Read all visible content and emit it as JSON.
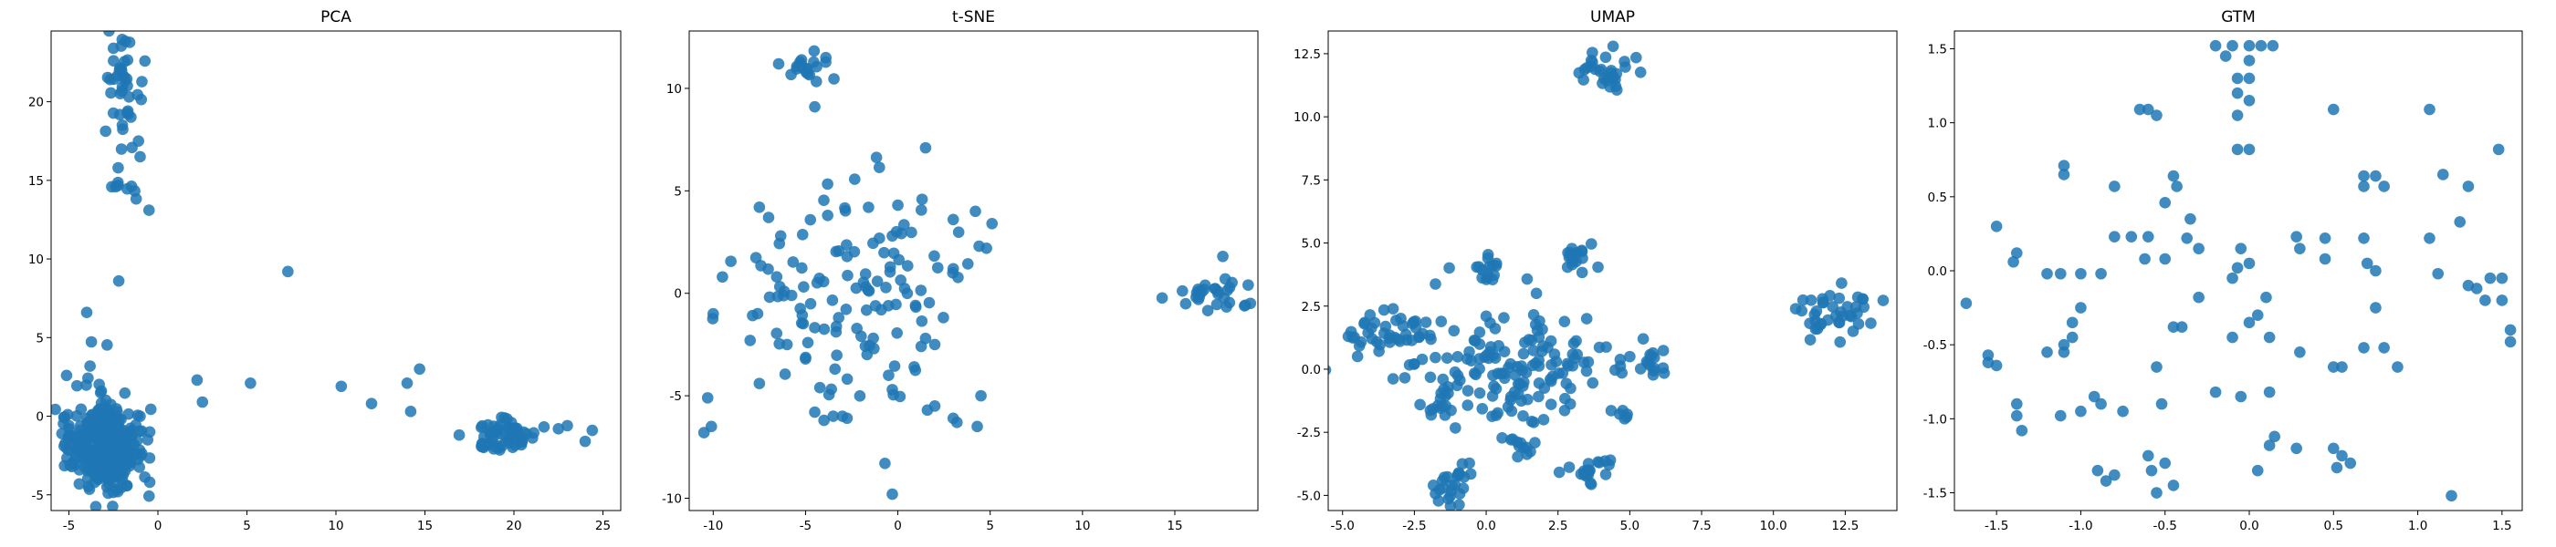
{
  "figure": {
    "background": "#ffffff",
    "marker_color": "#1f77b4",
    "marker_alpha": 0.85
  },
  "chart_data": [
    {
      "type": "scatter",
      "title": "PCA",
      "xlabel": "",
      "ylabel": "",
      "xlim": [
        -6.0,
        26.0
      ],
      "ylim": [
        -6.0,
        24.5
      ],
      "xticks": [
        -5,
        0,
        5,
        10,
        15,
        20,
        25
      ],
      "yticks": [
        -5,
        0,
        5,
        10,
        15,
        20
      ],
      "grid": false,
      "clusters": [
        {
          "cx": -3.0,
          "cy": -2.0,
          "sx": 1.0,
          "sy": 1.3,
          "n": 380
        },
        {
          "cx": -3.8,
          "cy": 2.5,
          "sx": 0.5,
          "sy": 1.6,
          "n": 10
        },
        {
          "cx": -2.0,
          "cy": 20.5,
          "sx": 0.5,
          "sy": 2.0,
          "n": 45
        },
        {
          "cx": -2.0,
          "cy": 14.3,
          "sx": 0.4,
          "sy": 0.4,
          "n": 8
        },
        {
          "cx": 19.5,
          "cy": -1.2,
          "sx": 1.0,
          "sy": 0.5,
          "n": 60
        }
      ],
      "points": [
        [
          -1.0,
          16.5
        ],
        [
          -0.5,
          13.1
        ],
        [
          -2.2,
          8.6
        ],
        [
          7.3,
          9.2
        ],
        [
          2.2,
          2.3
        ],
        [
          2.5,
          0.9
        ],
        [
          5.2,
          2.1
        ],
        [
          10.3,
          1.9
        ],
        [
          12.0,
          0.8
        ],
        [
          14.0,
          2.1
        ],
        [
          14.7,
          3.0
        ],
        [
          14.2,
          0.3
        ],
        [
          22.5,
          -0.8
        ],
        [
          24.0,
          -1.6
        ],
        [
          24.4,
          -0.9
        ],
        [
          23.0,
          -0.6
        ],
        [
          -5.0,
          -0.6
        ],
        [
          -4.0,
          6.6
        ],
        [
          -2.5,
          23.4
        ]
      ]
    },
    {
      "type": "scatter",
      "title": "t-SNE",
      "xlabel": "",
      "ylabel": "",
      "xlim": [
        -11.3,
        19.5
      ],
      "ylim": [
        -10.6,
        12.8
      ],
      "xticks": [
        -10,
        -5,
        0,
        5,
        10,
        15
      ],
      "yticks": [
        -10,
        -5,
        0,
        5,
        10
      ],
      "grid": false,
      "clusters": [
        {
          "cx": -5.0,
          "cy": 11.3,
          "sx": 0.6,
          "sy": 0.4,
          "n": 20
        },
        {
          "cx": 17.0,
          "cy": 0.0,
          "sx": 1.0,
          "sy": 0.5,
          "n": 30
        },
        {
          "cx": -2.5,
          "cy": 0.0,
          "sx": 3.0,
          "sy": 2.5,
          "n": 120
        }
      ],
      "points": [
        [
          -3.9,
          11.5
        ],
        [
          -4.5,
          9.1
        ],
        [
          1.5,
          7.1
        ],
        [
          4.2,
          4.0
        ],
        [
          5.1,
          3.4
        ],
        [
          4.4,
          2.3
        ],
        [
          4.8,
          2.2
        ],
        [
          3.0,
          3.6
        ],
        [
          3.0,
          1.2
        ],
        [
          -7.5,
          4.2
        ],
        [
          -7.0,
          3.7
        ],
        [
          -3.8,
          3.8
        ],
        [
          0.0,
          4.3
        ],
        [
          -0.3,
          2.8
        ],
        [
          -10.0,
          -1.0
        ],
        [
          -9.5,
          0.8
        ],
        [
          -10.3,
          -5.1
        ],
        [
          -10.1,
          -6.5
        ],
        [
          -10.5,
          -6.8
        ],
        [
          -8.0,
          -2.3
        ],
        [
          -7.5,
          -4.4
        ],
        [
          -6.0,
          -2.5
        ],
        [
          -5.0,
          -3.2
        ],
        [
          -4.5,
          -5.8
        ],
        [
          -4.0,
          -6.2
        ],
        [
          -3.5,
          -6.0
        ],
        [
          -3.0,
          -6.0
        ],
        [
          -0.5,
          -4.0
        ],
        [
          -0.3,
          -4.7
        ],
        [
          -0.7,
          -8.3
        ],
        [
          -0.3,
          -9.8
        ],
        [
          1.5,
          -2.2
        ],
        [
          2.0,
          -2.5
        ],
        [
          1.6,
          -5.7
        ],
        [
          2.0,
          -5.5
        ],
        [
          3.0,
          -6.1
        ],
        [
          3.2,
          -6.3
        ],
        [
          4.5,
          -5.0
        ],
        [
          4.3,
          -6.5
        ],
        [
          17.6,
          1.8
        ]
      ]
    },
    {
      "type": "scatter",
      "title": "UMAP",
      "xlabel": "",
      "ylabel": "",
      "xlim": [
        -5.5,
        14.3
      ],
      "ylim": [
        -5.6,
        13.4
      ],
      "xticks": [
        -5.0,
        -2.5,
        0.0,
        2.5,
        5.0,
        7.5,
        10.0,
        12.5
      ],
      "yticks": [
        -5.0,
        -2.5,
        0.0,
        2.5,
        5.0,
        7.5,
        10.0,
        12.5
      ],
      "grid": false,
      "clusters": [
        {
          "cx": 4.2,
          "cy": 11.9,
          "sx": 0.6,
          "sy": 0.4,
          "n": 30
        },
        {
          "cx": 12.2,
          "cy": 2.2,
          "sx": 1.0,
          "sy": 0.5,
          "n": 40
        },
        {
          "cx": 0.0,
          "cy": 4.0,
          "sx": 0.3,
          "sy": 0.3,
          "n": 15
        },
        {
          "cx": 3.1,
          "cy": 4.3,
          "sx": 0.3,
          "sy": 0.4,
          "n": 18
        },
        {
          "cx": -3.5,
          "cy": 1.5,
          "sx": 0.9,
          "sy": 0.4,
          "n": 40
        },
        {
          "cx": 1.0,
          "cy": 0.0,
          "sx": 1.8,
          "sy": 1.2,
          "n": 150
        },
        {
          "cx": -1.0,
          "cy": -4.4,
          "sx": 0.4,
          "sy": 0.4,
          "n": 25
        },
        {
          "cx": 3.5,
          "cy": -4.0,
          "sx": 0.4,
          "sy": 0.3,
          "n": 20
        },
        {
          "cx": 5.7,
          "cy": 0.2,
          "sx": 0.3,
          "sy": 0.3,
          "n": 12
        },
        {
          "cx": -1.5,
          "cy": -1.5,
          "sx": 0.3,
          "sy": 0.2,
          "n": 12
        },
        {
          "cx": 1.5,
          "cy": -3.2,
          "sx": 0.2,
          "sy": 0.2,
          "n": 8
        },
        {
          "cx": 4.8,
          "cy": -1.7,
          "sx": 0.2,
          "sy": 0.2,
          "n": 6
        }
      ],
      "points": [
        [
          5.0,
          0.5
        ],
        [
          3.5,
          2.0
        ],
        [
          -2.5,
          0.2
        ],
        [
          0.0,
          2.1
        ],
        [
          2.0,
          -2.0
        ],
        [
          -4.8,
          1.3
        ]
      ]
    },
    {
      "type": "scatter",
      "title": "GTM",
      "xlabel": "",
      "ylabel": "",
      "xlim": [
        -1.75,
        1.62
      ],
      "ylim": [
        -1.62,
        1.62
      ],
      "xticks": [
        -1.5,
        -1.0,
        -0.5,
        0.0,
        0.5,
        1.0,
        1.5
      ],
      "yticks": [
        -1.5,
        -1.0,
        -0.5,
        0.0,
        0.5,
        1.0,
        1.5
      ],
      "grid": false,
      "points": [
        [
          -0.2,
          1.52
        ],
        [
          -0.1,
          1.52
        ],
        [
          0.0,
          1.52
        ],
        [
          0.07,
          1.52
        ],
        [
          0.14,
          1.52
        ],
        [
          -0.14,
          1.45
        ],
        [
          0.0,
          1.42
        ],
        [
          -0.07,
          1.3
        ],
        [
          0.0,
          1.3
        ],
        [
          -0.07,
          1.2
        ],
        [
          0.0,
          1.15
        ],
        [
          -0.07,
          1.05
        ],
        [
          -0.07,
          0.82
        ],
        [
          0.0,
          0.82
        ],
        [
          -0.65,
          1.09
        ],
        [
          -0.6,
          1.09
        ],
        [
          -0.55,
          1.05
        ],
        [
          0.5,
          1.09
        ],
        [
          1.07,
          1.09
        ],
        [
          -1.1,
          0.71
        ],
        [
          -1.1,
          0.65
        ],
        [
          -0.8,
          0.57
        ],
        [
          -0.45,
          0.64
        ],
        [
          -0.43,
          0.57
        ],
        [
          -0.5,
          0.46
        ],
        [
          0.68,
          0.64
        ],
        [
          0.75,
          0.64
        ],
        [
          0.68,
          0.57
        ],
        [
          0.8,
          0.57
        ],
        [
          1.15,
          0.65
        ],
        [
          1.3,
          0.57
        ],
        [
          -0.8,
          0.23
        ],
        [
          -0.7,
          0.23
        ],
        [
          -0.6,
          0.23
        ],
        [
          -0.35,
          0.35
        ],
        [
          -0.37,
          0.22
        ],
        [
          -0.3,
          0.15
        ],
        [
          0.28,
          0.23
        ],
        [
          0.3,
          0.15
        ],
        [
          0.45,
          0.22
        ],
        [
          0.68,
          0.22
        ],
        [
          1.07,
          0.22
        ],
        [
          1.25,
          0.33
        ],
        [
          1.48,
          0.82
        ],
        [
          -1.38,
          0.12
        ],
        [
          -1.4,
          0.06
        ],
        [
          -1.5,
          0.3
        ],
        [
          -1.68,
          -0.22
        ],
        [
          -1.55,
          -0.57
        ],
        [
          -1.55,
          -0.62
        ],
        [
          -1.5,
          -0.64
        ],
        [
          -1.38,
          -0.9
        ],
        [
          -1.38,
          -0.98
        ],
        [
          -1.35,
          -1.08
        ],
        [
          -1.2,
          -0.55
        ],
        [
          -1.1,
          -0.5
        ],
        [
          -1.05,
          -0.45
        ],
        [
          -1.1,
          -0.55
        ],
        [
          -1.2,
          -0.02
        ],
        [
          -1.12,
          -0.02
        ],
        [
          -1.0,
          -0.02
        ],
        [
          -0.88,
          -0.02
        ],
        [
          -1.05,
          -0.35
        ],
        [
          -1.0,
          -0.25
        ],
        [
          -0.92,
          -0.85
        ],
        [
          -0.88,
          -0.9
        ],
        [
          -1.0,
          -0.95
        ],
        [
          -1.12,
          -0.98
        ],
        [
          -0.75,
          -0.95
        ],
        [
          -0.9,
          -1.35
        ],
        [
          -0.85,
          -1.42
        ],
        [
          -0.8,
          -1.38
        ],
        [
          -0.6,
          -1.25
        ],
        [
          -0.58,
          -1.35
        ],
        [
          -0.55,
          -1.5
        ],
        [
          -0.5,
          -1.3
        ],
        [
          -0.45,
          -1.45
        ],
        [
          -0.52,
          -0.9
        ],
        [
          -0.55,
          -0.65
        ],
        [
          -0.45,
          -0.38
        ],
        [
          -0.4,
          -0.38
        ],
        [
          -0.3,
          -0.18
        ],
        [
          -0.1,
          -0.05
        ],
        [
          -0.07,
          0.02
        ],
        [
          0.05,
          -0.3
        ],
        [
          0.0,
          -0.35
        ],
        [
          0.1,
          -0.18
        ],
        [
          -0.1,
          -0.45
        ],
        [
          0.12,
          -0.82
        ],
        [
          -0.05,
          -0.85
        ],
        [
          -0.2,
          -0.82
        ],
        [
          0.05,
          -1.35
        ],
        [
          0.12,
          -1.18
        ],
        [
          0.15,
          -1.12
        ],
        [
          0.28,
          -1.2
        ],
        [
          0.3,
          -0.55
        ],
        [
          0.5,
          -0.65
        ],
        [
          0.55,
          -0.65
        ],
        [
          0.5,
          -1.2
        ],
        [
          0.55,
          -1.25
        ],
        [
          0.6,
          -1.3
        ],
        [
          0.52,
          -1.33
        ],
        [
          0.68,
          -0.52
        ],
        [
          0.75,
          -0.25
        ],
        [
          0.8,
          -0.52
        ],
        [
          0.88,
          -0.65
        ],
        [
          1.12,
          -0.02
        ],
        [
          1.2,
          -1.52
        ],
        [
          1.35,
          -0.12
        ],
        [
          1.4,
          -0.2
        ],
        [
          1.43,
          -0.05
        ],
        [
          1.5,
          -0.05
        ],
        [
          1.55,
          -0.4
        ],
        [
          1.55,
          -0.48
        ],
        [
          1.5,
          -0.2
        ],
        [
          1.3,
          -0.1
        ],
        [
          0.12,
          -0.45
        ],
        [
          0.45,
          0.08
        ],
        [
          -0.05,
          0.15
        ],
        [
          0.0,
          0.05
        ],
        [
          -0.5,
          0.08
        ],
        [
          -0.62,
          0.08
        ],
        [
          0.7,
          0.05
        ],
        [
          0.75,
          0.0
        ]
      ]
    }
  ]
}
